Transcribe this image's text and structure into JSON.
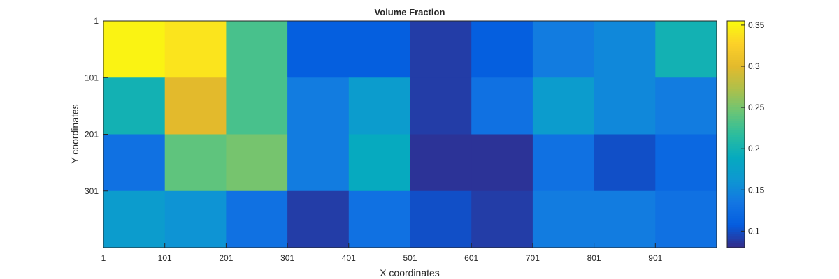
{
  "chart_data": {
    "type": "heatmap",
    "title": "Volume Fraction",
    "xlabel": "X coordinates",
    "ylabel": "Y coordinates",
    "x_ticks": [
      "1",
      "101",
      "201",
      "301",
      "401",
      "501",
      "601",
      "701",
      "801",
      "901"
    ],
    "y_ticks": [
      "1",
      "101",
      "201",
      "301"
    ],
    "colorbar": {
      "colormap": "parula",
      "range": [
        0.08,
        0.355
      ],
      "ticks": [
        "0.1",
        "0.15",
        "0.2",
        "0.25",
        "0.3",
        "0.35"
      ]
    },
    "cells": [
      [
        0.35,
        0.34,
        0.23,
        0.11,
        0.11,
        0.09,
        0.11,
        0.14,
        0.15,
        0.2
      ],
      [
        0.2,
        0.3,
        0.23,
        0.14,
        0.17,
        0.09,
        0.13,
        0.17,
        0.15,
        0.14
      ],
      [
        0.13,
        0.24,
        0.25,
        0.14,
        0.19,
        0.085,
        0.085,
        0.13,
        0.1,
        0.12
      ],
      [
        0.17,
        0.16,
        0.13,
        0.09,
        0.13,
        0.1,
        0.09,
        0.14,
        0.14,
        0.13
      ]
    ]
  }
}
